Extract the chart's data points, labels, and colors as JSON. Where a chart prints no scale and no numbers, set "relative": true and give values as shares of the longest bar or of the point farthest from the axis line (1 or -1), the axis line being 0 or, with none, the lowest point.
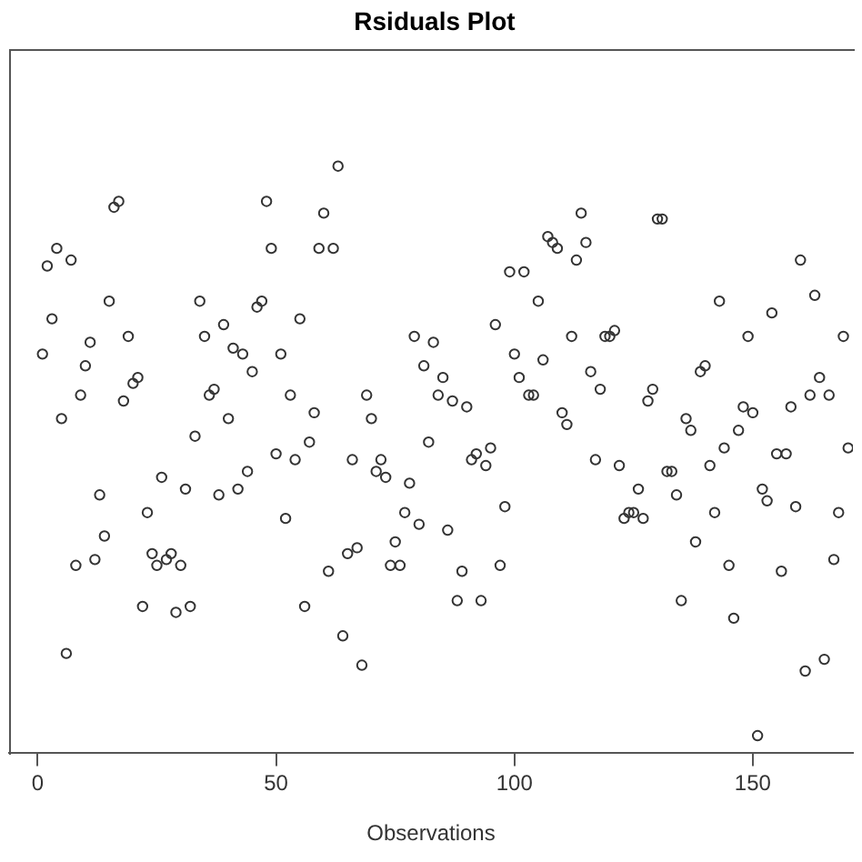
{
  "chart_data": {
    "type": "scatter",
    "title": "Rsiduals Plot",
    "xlabel": "Observations",
    "relative": true,
    "marker": "circle",
    "legend": false,
    "xlim": [
      -6,
      171
    ],
    "xticks": [
      0,
      50,
      100,
      150
    ],
    "series": [
      {
        "color": "#333333",
        "x": [
          1,
          2,
          3,
          4,
          5,
          6,
          7,
          8,
          9,
          10,
          11,
          12,
          13,
          14,
          15,
          16,
          17,
          18,
          19,
          20,
          21,
          22,
          23,
          24,
          25,
          26,
          27,
          28,
          29,
          30,
          31,
          32,
          33,
          34,
          35,
          36,
          37,
          38,
          39,
          40,
          41,
          42,
          43,
          44,
          45,
          46,
          47,
          48,
          49,
          50,
          51,
          52,
          53,
          54,
          55,
          56,
          57,
          58,
          59,
          60,
          61,
          62,
          63,
          64,
          65,
          66,
          67,
          68,
          69,
          70,
          71,
          72,
          73,
          74,
          75,
          76,
          77,
          78,
          79,
          80,
          81,
          82,
          83,
          84,
          85,
          86,
          87,
          88,
          89,
          90,
          91,
          92,
          93,
          94,
          95,
          96,
          97,
          98,
          99,
          100,
          101,
          102,
          103,
          104,
          105,
          106,
          107,
          108,
          109,
          110,
          111,
          112,
          113,
          114,
          115,
          116,
          117,
          118,
          119,
          120,
          121,
          122,
          123,
          124,
          125,
          126,
          127,
          128,
          129,
          130,
          131,
          132,
          133,
          134,
          135,
          136,
          137,
          138,
          139,
          140,
          141,
          142,
          143,
          144,
          145,
          146,
          147,
          148,
          149,
          150,
          151,
          152,
          153,
          154,
          155,
          156,
          157,
          158,
          159,
          160,
          161,
          162,
          163,
          164,
          165,
          166,
          167,
          168,
          169,
          170
        ],
        "values": [
          0.68,
          0.83,
          0.74,
          0.86,
          0.57,
          0.17,
          0.84,
          0.32,
          0.61,
          0.66,
          0.7,
          0.33,
          0.44,
          0.37,
          0.77,
          0.93,
          0.94,
          0.6,
          0.71,
          0.63,
          0.64,
          0.25,
          0.41,
          0.34,
          0.32,
          0.47,
          0.33,
          0.34,
          0.24,
          0.32,
          0.45,
          0.25,
          0.54,
          0.77,
          0.71,
          0.61,
          0.62,
          0.44,
          0.73,
          0.57,
          0.69,
          0.45,
          0.68,
          0.48,
          0.65,
          0.76,
          0.77,
          0.94,
          0.86,
          0.51,
          0.68,
          0.4,
          0.61,
          0.5,
          0.74,
          0.25,
          0.53,
          0.58,
          0.86,
          0.92,
          0.31,
          0.86,
          1.0,
          0.2,
          0.34,
          0.5,
          0.35,
          0.15,
          0.61,
          0.57,
          0.48,
          0.5,
          0.47,
          0.32,
          0.36,
          0.32,
          0.41,
          0.46,
          0.71,
          0.39,
          0.66,
          0.53,
          0.7,
          0.61,
          0.64,
          0.38,
          0.6,
          0.26,
          0.31,
          0.59,
          0.5,
          0.51,
          0.26,
          0.49,
          0.52,
          0.73,
          0.32,
          0.42,
          0.82,
          0.68,
          0.64,
          0.82,
          0.61,
          0.61,
          0.77,
          0.67,
          0.88,
          0.87,
          0.86,
          0.58,
          0.56,
          0.71,
          0.84,
          0.92,
          0.87,
          0.65,
          0.5,
          0.62,
          0.71,
          0.71,
          0.72,
          0.49,
          0.4,
          0.41,
          0.41,
          0.45,
          0.4,
          0.6,
          0.62,
          0.91,
          0.91,
          0.48,
          0.48,
          0.44,
          0.26,
          0.57,
          0.55,
          0.36,
          0.65,
          0.66,
          0.49,
          0.41,
          0.77,
          0.52,
          0.32,
          0.23,
          0.55,
          0.59,
          0.71,
          0.58,
          0.03,
          0.45,
          0.43,
          0.75,
          0.51,
          0.31,
          0.51,
          0.59,
          0.42,
          0.84,
          0.14,
          0.61,
          0.78,
          0.64,
          0.16,
          0.61,
          0.33,
          0.41,
          0.71,
          0.52
        ]
      }
    ]
  }
}
